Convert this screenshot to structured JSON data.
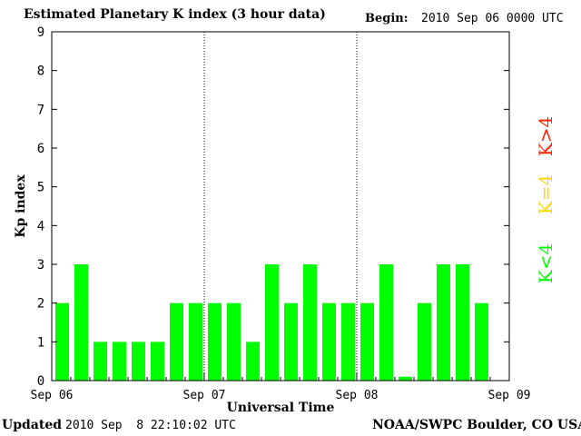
{
  "header": {
    "title": "Estimated Planetary K index (3 hour data)",
    "begin_label": "Begin:",
    "begin_value": "2010 Sep 06 0000 UTC"
  },
  "footer": {
    "updated_label": "Updated",
    "updated_value": "2010 Sep  8 22:10:02 UTC",
    "credit": "NOAA/SWPC Boulder, CO USA"
  },
  "legend": {
    "items": [
      {
        "label": "K<4",
        "color": "#00ff00"
      },
      {
        "label": "K=4",
        "color": "#ffd700"
      },
      {
        "label": "K>4",
        "color": "#ff2000"
      }
    ]
  },
  "colors": {
    "low": "#00ff00",
    "mid": "#ffd700",
    "high": "#ff2000"
  },
  "chart_data": {
    "type": "bar",
    "ylabel": "Kp index",
    "xlabel": "Universal Time",
    "ylim": [
      0,
      9
    ],
    "yticks": [
      "0",
      "1",
      "2",
      "3",
      "4",
      "5",
      "6",
      "7",
      "8",
      "9"
    ],
    "xticks": [
      "Sep 06",
      "Sep 07",
      "Sep 08",
      "Sep 09"
    ],
    "interval_hours": 3,
    "values": [
      2,
      3,
      1,
      1,
      1,
      1,
      2,
      2,
      2,
      2,
      1,
      3,
      2,
      3,
      2,
      2,
      2,
      3,
      0.1,
      2,
      3,
      3,
      2
    ],
    "day_separators": "dotted",
    "grid": false
  }
}
